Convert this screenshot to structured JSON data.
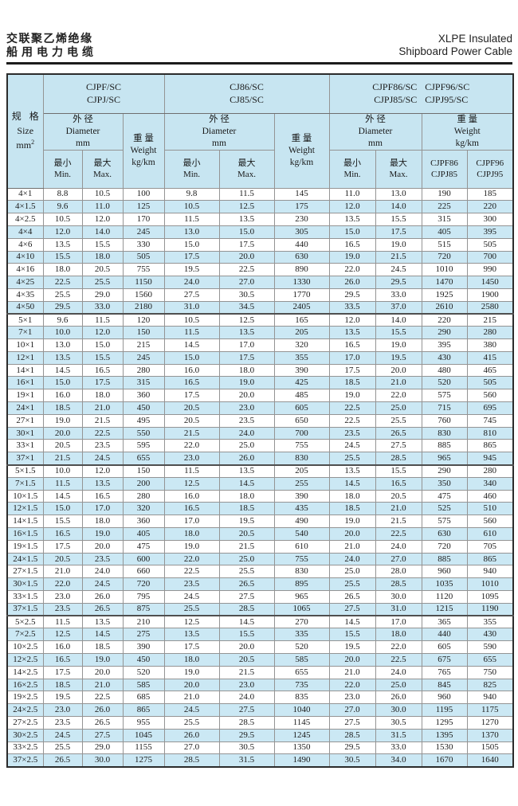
{
  "page": {
    "title_zh_line1": "交联聚乙烯绝缘",
    "title_zh_line2": "船用电力电缆",
    "title_en_line1": "XLPE Insulated",
    "title_en_line2": "Shipboard Power Cable"
  },
  "table": {
    "size_header": {
      "zh": "规 格",
      "en": "Size",
      "unit_base": "mm",
      "unit_sup": "2"
    },
    "groups": [
      {
        "line1": "CJPF/SC",
        "line2": "CJPJ/SC"
      },
      {
        "line1": "CJ86/SC",
        "line2": "CJ85/SC"
      },
      {
        "line1": "CJPF86/SC CJPF96/SC",
        "line2": "CJPJ85/SC CJPJ95/SC"
      }
    ],
    "diameter_header": {
      "zh": "外 径",
      "en": "Diameter",
      "unit": "mm"
    },
    "weight_header": {
      "zh": "重 量",
      "en": "Weight",
      "unit": "kg/km"
    },
    "min_header": {
      "zh": "最小",
      "en": "Min."
    },
    "max_header": {
      "zh": "最大",
      "en": "Max."
    },
    "g3_weight_cols": [
      {
        "line1": "CJPF86",
        "line2": "CJPJ85"
      },
      {
        "line1": "CJPF96",
        "line2": "CJPJ95"
      }
    ],
    "group_breaks_after": [
      9,
      21,
      33
    ],
    "rows": [
      [
        "4×1",
        "8.8",
        "10.5",
        "100",
        "9.8",
        "11.5",
        "145",
        "11.0",
        "13.0",
        "190",
        "185"
      ],
      [
        "4×1.5",
        "9.6",
        "11.0",
        "125",
        "10.5",
        "12.5",
        "175",
        "12.0",
        "14.0",
        "225",
        "220"
      ],
      [
        "4×2.5",
        "10.5",
        "12.0",
        "170",
        "11.5",
        "13.5",
        "230",
        "13.5",
        "15.5",
        "315",
        "300"
      ],
      [
        "4×4",
        "12.0",
        "14.0",
        "245",
        "13.0",
        "15.0",
        "305",
        "15.0",
        "17.5",
        "405",
        "395"
      ],
      [
        "4×6",
        "13.5",
        "15.5",
        "330",
        "15.0",
        "17.5",
        "440",
        "16.5",
        "19.0",
        "515",
        "505"
      ],
      [
        "4×10",
        "15.5",
        "18.0",
        "505",
        "17.5",
        "20.0",
        "630",
        "19.0",
        "21.5",
        "720",
        "700"
      ],
      [
        "4×16",
        "18.0",
        "20.5",
        "755",
        "19.5",
        "22.5",
        "890",
        "22.0",
        "24.5",
        "1010",
        "990"
      ],
      [
        "4×25",
        "22.5",
        "25.5",
        "1150",
        "24.0",
        "27.0",
        "1330",
        "26.0",
        "29.5",
        "1470",
        "1450"
      ],
      [
        "4×35",
        "25.5",
        "29.0",
        "1560",
        "27.5",
        "30.5",
        "1770",
        "29.5",
        "33.0",
        "1925",
        "1900"
      ],
      [
        "4×50",
        "29.5",
        "33.0",
        "2180",
        "31.0",
        "34.5",
        "2405",
        "33.5",
        "37.0",
        "2610",
        "2580"
      ],
      [
        "5×1",
        "9.6",
        "11.5",
        "120",
        "10.5",
        "12.5",
        "165",
        "12.0",
        "14.0",
        "220",
        "215"
      ],
      [
        "7×1",
        "10.0",
        "12.0",
        "150",
        "11.5",
        "13.5",
        "205",
        "13.5",
        "15.5",
        "290",
        "280"
      ],
      [
        "10×1",
        "13.0",
        "15.0",
        "215",
        "14.5",
        "17.0",
        "320",
        "16.5",
        "19.0",
        "395",
        "380"
      ],
      [
        "12×1",
        "13.5",
        "15.5",
        "245",
        "15.0",
        "17.5",
        "355",
        "17.0",
        "19.5",
        "430",
        "415"
      ],
      [
        "14×1",
        "14.5",
        "16.5",
        "280",
        "16.0",
        "18.0",
        "390",
        "17.5",
        "20.0",
        "480",
        "465"
      ],
      [
        "16×1",
        "15.0",
        "17.5",
        "315",
        "16.5",
        "19.0",
        "425",
        "18.5",
        "21.0",
        "520",
        "505"
      ],
      [
        "19×1",
        "16.0",
        "18.0",
        "360",
        "17.5",
        "20.0",
        "485",
        "19.0",
        "22.0",
        "575",
        "560"
      ],
      [
        "24×1",
        "18.5",
        "21.0",
        "450",
        "20.5",
        "23.0",
        "605",
        "22.5",
        "25.0",
        "715",
        "695"
      ],
      [
        "27×1",
        "19.0",
        "21.5",
        "495",
        "20.5",
        "23.5",
        "650",
        "22.5",
        "25.5",
        "760",
        "745"
      ],
      [
        "30×1",
        "20.0",
        "22.5",
        "550",
        "21.5",
        "24.0",
        "700",
        "23.5",
        "26.5",
        "830",
        "810"
      ],
      [
        "33×1",
        "20.5",
        "23.5",
        "595",
        "22.0",
        "25.0",
        "755",
        "24.5",
        "27.5",
        "885",
        "865"
      ],
      [
        "37×1",
        "21.5",
        "24.5",
        "655",
        "23.0",
        "26.0",
        "830",
        "25.5",
        "28.5",
        "965",
        "945"
      ],
      [
        "5×1.5",
        "10.0",
        "12.0",
        "150",
        "11.5",
        "13.5",
        "205",
        "13.5",
        "15.5",
        "290",
        "280"
      ],
      [
        "7×1.5",
        "11.5",
        "13.5",
        "200",
        "12.5",
        "14.5",
        "255",
        "14.5",
        "16.5",
        "350",
        "340"
      ],
      [
        "10×1.5",
        "14.5",
        "16.5",
        "280",
        "16.0",
        "18.0",
        "390",
        "18.0",
        "20.5",
        "475",
        "460"
      ],
      [
        "12×1.5",
        "15.0",
        "17.0",
        "320",
        "16.5",
        "18.5",
        "435",
        "18.5",
        "21.0",
        "525",
        "510"
      ],
      [
        "14×1.5",
        "15.5",
        "18.0",
        "360",
        "17.0",
        "19.5",
        "490",
        "19.0",
        "21.5",
        "575",
        "560"
      ],
      [
        "16×1.5",
        "16.5",
        "19.0",
        "405",
        "18.0",
        "20.5",
        "540",
        "20.0",
        "22.5",
        "630",
        "610"
      ],
      [
        "19×1.5",
        "17.5",
        "20.0",
        "475",
        "19.0",
        "21.5",
        "610",
        "21.0",
        "24.0",
        "720",
        "705"
      ],
      [
        "24×1.5",
        "20.5",
        "23.5",
        "600",
        "22.0",
        "25.0",
        "755",
        "24.0",
        "27.0",
        "885",
        "865"
      ],
      [
        "27×1.5",
        "21.0",
        "24.0",
        "660",
        "22.5",
        "25.5",
        "830",
        "25.0",
        "28.0",
        "960",
        "940"
      ],
      [
        "30×1.5",
        "22.0",
        "24.5",
        "720",
        "23.5",
        "26.5",
        "895",
        "25.5",
        "28.5",
        "1035",
        "1010"
      ],
      [
        "33×1.5",
        "23.0",
        "26.0",
        "795",
        "24.5",
        "27.5",
        "965",
        "26.5",
        "30.0",
        "1120",
        "1095"
      ],
      [
        "37×1.5",
        "23.5",
        "26.5",
        "875",
        "25.5",
        "28.5",
        "1065",
        "27.5",
        "31.0",
        "1215",
        "1190"
      ],
      [
        "5×2.5",
        "11.5",
        "13.5",
        "210",
        "12.5",
        "14.5",
        "270",
        "14.5",
        "17.0",
        "365",
        "355"
      ],
      [
        "7×2.5",
        "12.5",
        "14.5",
        "275",
        "13.5",
        "15.5",
        "335",
        "15.5",
        "18.0",
        "440",
        "430"
      ],
      [
        "10×2.5",
        "16.0",
        "18.5",
        "390",
        "17.5",
        "20.0",
        "520",
        "19.5",
        "22.0",
        "605",
        "590"
      ],
      [
        "12×2.5",
        "16.5",
        "19.0",
        "450",
        "18.0",
        "20.5",
        "585",
        "20.0",
        "22.5",
        "675",
        "655"
      ],
      [
        "14×2.5",
        "17.5",
        "20.0",
        "520",
        "19.0",
        "21.5",
        "655",
        "21.0",
        "24.0",
        "765",
        "750"
      ],
      [
        "16×2.5",
        "18.5",
        "21.0",
        "585",
        "20.0",
        "23.0",
        "735",
        "22.0",
        "25.0",
        "845",
        "825"
      ],
      [
        "19×2.5",
        "19.5",
        "22.5",
        "685",
        "21.0",
        "24.0",
        "835",
        "23.0",
        "26.0",
        "960",
        "940"
      ],
      [
        "24×2.5",
        "23.0",
        "26.0",
        "865",
        "24.5",
        "27.5",
        "1040",
        "27.0",
        "30.0",
        "1195",
        "1175"
      ],
      [
        "27×2.5",
        "23.5",
        "26.5",
        "955",
        "25.5",
        "28.5",
        "1145",
        "27.5",
        "30.5",
        "1295",
        "1270"
      ],
      [
        "30×2.5",
        "24.5",
        "27.5",
        "1045",
        "26.0",
        "29.5",
        "1245",
        "28.5",
        "31.5",
        "1395",
        "1370"
      ],
      [
        "33×2.5",
        "25.5",
        "29.0",
        "1155",
        "27.0",
        "30.5",
        "1350",
        "29.5",
        "33.0",
        "1530",
        "1505"
      ],
      [
        "37×2.5",
        "26.5",
        "30.0",
        "1275",
        "28.5",
        "31.5",
        "1490",
        "30.5",
        "34.0",
        "1670",
        "1640"
      ]
    ]
  },
  "colors": {
    "stripe": "#cbe8f4",
    "header_bg": "#c7e5f1",
    "grid": "#949494",
    "outer_border": "#2b2b2b",
    "group_separator": "#4f4f4f"
  }
}
